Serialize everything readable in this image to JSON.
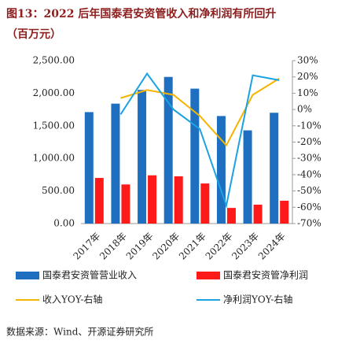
{
  "chart_data": {
    "type": "bar_line",
    "title": "图13：2022 后年国泰君安资管收入和净利润有所回升",
    "subtitle": "（百万元）",
    "source": "数据来源：Wind、开源证券研究所",
    "categories": [
      "2017年",
      "2018年",
      "2019年",
      "2020年",
      "2021年",
      "2022年",
      "2023年",
      "2024年"
    ],
    "series": [
      {
        "name": "国泰君安资管营业收入",
        "color": "#1f6fc0",
        "kind": "bar",
        "values": [
          1710,
          1840,
          2050,
          2250,
          2070,
          1650,
          1430,
          1700
        ]
      },
      {
        "name": "国泰君安资管净利润",
        "color": "#ff1a1a",
        "kind": "bar",
        "values": [
          700,
          600,
          740,
          725,
          615,
          240,
          290,
          350
        ]
      },
      {
        "name": "收入YOY-右轴",
        "color": "#f5b400",
        "kind": "line",
        "axis": "y2",
        "values": [
          null,
          7,
          12,
          9,
          -4,
          -22,
          9,
          19
        ]
      },
      {
        "name": "净利润YOY-右轴",
        "color": "#1aa3e0",
        "kind": "line",
        "axis": "y2",
        "values": [
          null,
          -3,
          22,
          0,
          -12,
          -59,
          21,
          18
        ]
      }
    ],
    "ylim": [
      0,
      2500
    ],
    "yticks": [
      {
        "value": 0,
        "label": "0.00"
      },
      {
        "value": 500,
        "label": "500.00"
      },
      {
        "value": 1000,
        "label": "1,000.00"
      },
      {
        "value": 1500,
        "label": "1,500.00"
      },
      {
        "value": 2000,
        "label": "2,000.00"
      },
      {
        "value": 2500,
        "label": "2,500.00"
      }
    ],
    "y2lim": [
      -70,
      30
    ],
    "y2ticks": [
      {
        "value": 30,
        "label": "30%"
      },
      {
        "value": 20,
        "label": "20%"
      },
      {
        "value": 10,
        "label": "10%"
      },
      {
        "value": 0,
        "label": "0%"
      },
      {
        "value": -10,
        "label": "-10%"
      },
      {
        "value": -20,
        "label": "-20%"
      },
      {
        "value": -30,
        "label": "-30%"
      },
      {
        "value": -40,
        "label": "-40%"
      },
      {
        "value": -50,
        "label": "-50%"
      },
      {
        "value": -60,
        "label": "-60%"
      },
      {
        "value": -70,
        "label": "-70%"
      }
    ],
    "grid": false
  }
}
